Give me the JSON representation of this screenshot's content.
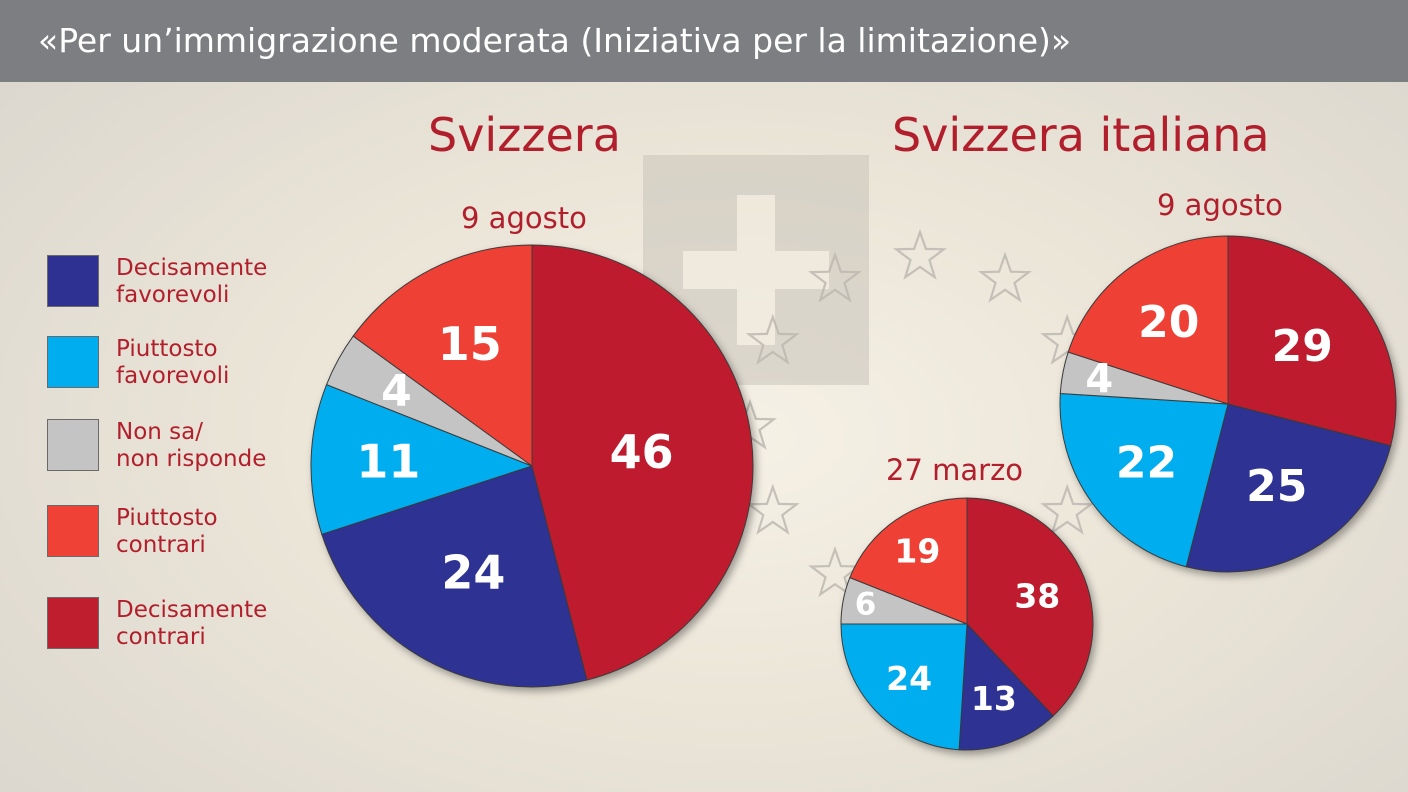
{
  "title": "«Per un’immigrazione moderata (Iniziativa per la limitazione)»",
  "colors": {
    "decisamente_favorevoli": "#2e3192",
    "piuttosto_favorevoli": "#00aeef",
    "non_sa": "#c4c4c4",
    "piuttosto_contrari": "#ef4136",
    "decisamente_contrari": "#be1e2d",
    "text_red": "#b21f2c",
    "title_bar": "#7d7e81"
  },
  "legend": [
    {
      "label": "Decisamente\nfavorevoli",
      "color": "#2e3192"
    },
    {
      "label": "Piuttosto\nfavorevoli",
      "color": "#00aeef"
    },
    {
      "label": "Non sa/\nnon risponde",
      "color": "#c4c4c4"
    },
    {
      "label": "Piuttosto\ncontrari",
      "color": "#ef4136"
    },
    {
      "label": "Decisamente\ncontrari",
      "color": "#be1e2d"
    }
  ],
  "headings": {
    "svizzera": "Svizzera",
    "svizzera_italiana": "Svizzera italiana"
  },
  "dates": {
    "svizzera": "9 agosto",
    "svizzera_italiana_agosto": "9 agosto",
    "svizzera_italiana_marzo": "27 marzo"
  },
  "chart_data": [
    {
      "type": "pie",
      "title": "Svizzera",
      "subtitle": "9 agosto",
      "categories": [
        "Decisamente favorevoli",
        "Piuttosto favorevoli",
        "Non sa/non risponde",
        "Piuttosto contrari",
        "Decisamente contrari"
      ],
      "values": [
        24,
        11,
        4,
        15,
        46
      ]
    },
    {
      "type": "pie",
      "title": "Svizzera italiana",
      "subtitle": "9 agosto",
      "categories": [
        "Decisamente favorevoli",
        "Piuttosto favorevoli",
        "Non sa/non risponde",
        "Piuttosto contrari",
        "Decisamente contrari"
      ],
      "values": [
        25,
        22,
        4,
        20,
        29
      ]
    },
    {
      "type": "pie",
      "title": "Svizzera italiana",
      "subtitle": "27 marzo",
      "categories": [
        "Decisamente favorevoli",
        "Piuttosto favorevoli",
        "Non sa/non risponde",
        "Piuttosto contrari",
        "Decisamente contrari"
      ],
      "values": [
        13,
        24,
        6,
        19,
        38
      ]
    }
  ]
}
